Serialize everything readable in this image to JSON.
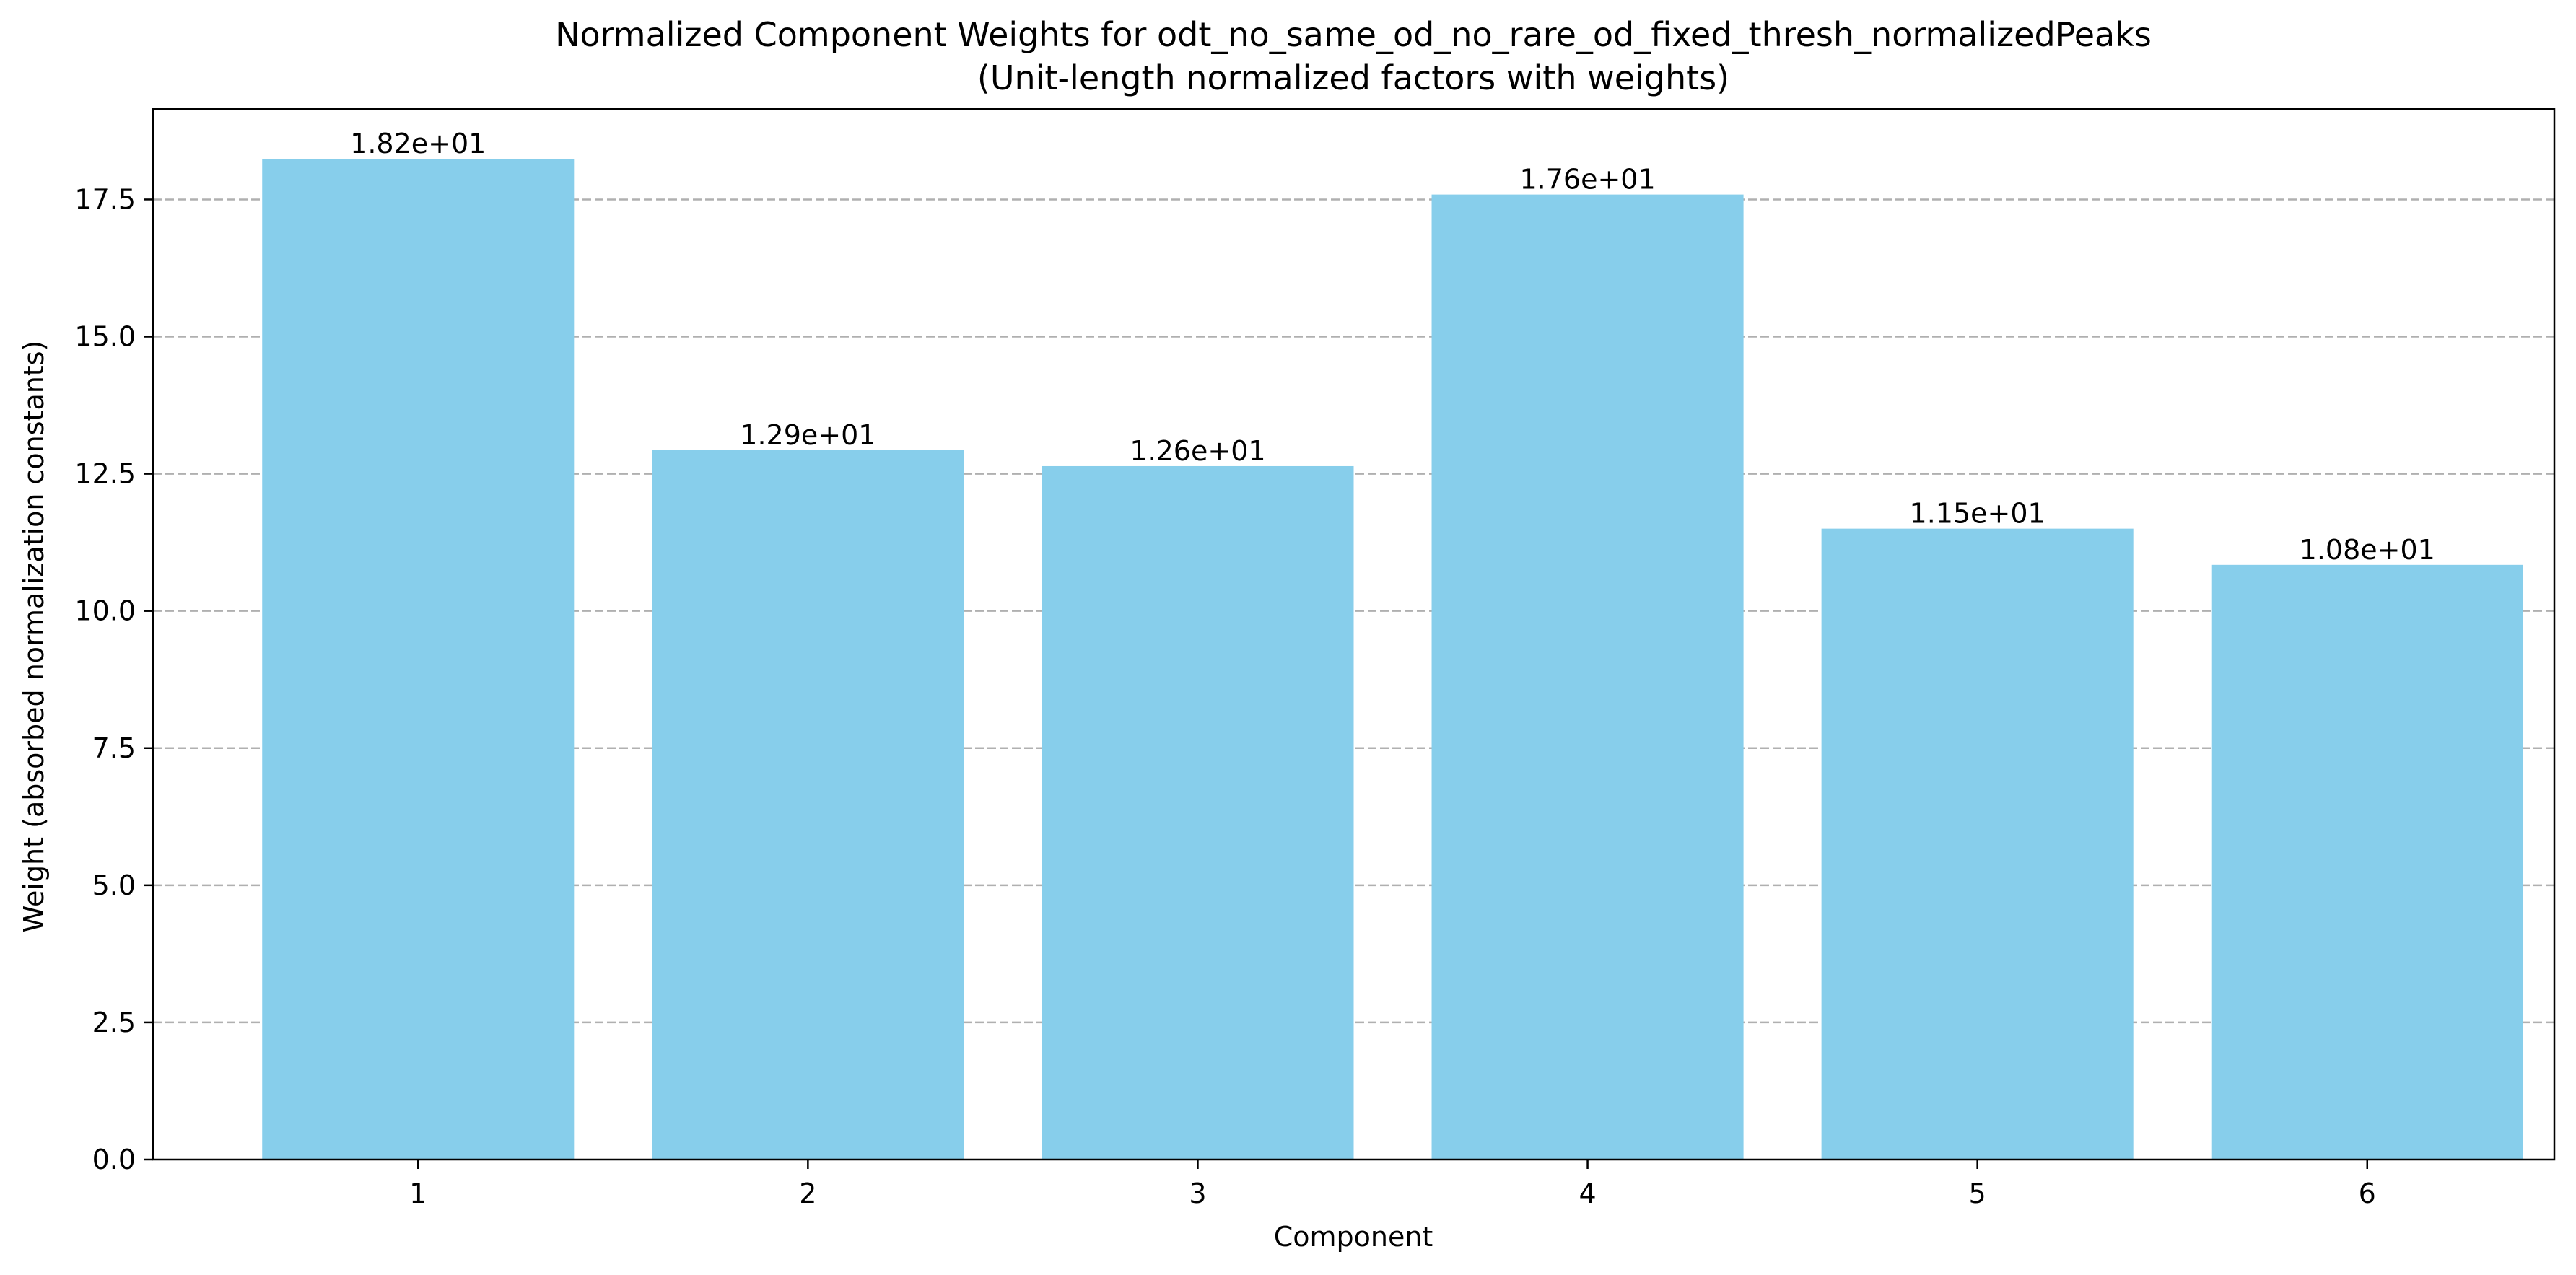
{
  "chart_data": {
    "type": "bar",
    "title": "Normalized Component Weights for odt_no_same_od_no_rare_od_fixed_thresh_normalizedPeaks",
    "subtitle": "(Unit-length normalized factors with weights)",
    "xlabel": "Component",
    "ylabel": "Weight (absorbed normalization constants)",
    "categories": [
      "1",
      "2",
      "3",
      "4",
      "5",
      "6"
    ],
    "values": [
      18.24,
      12.93,
      12.64,
      17.59,
      11.5,
      10.84
    ],
    "value_labels": [
      "1.82e+01",
      "1.29e+01",
      "1.26e+01",
      "1.76e+01",
      "1.15e+01",
      "1.08e+01"
    ],
    "ylim": [
      0,
      19.15
    ],
    "yticks": [
      0.0,
      2.5,
      5.0,
      7.5,
      10.0,
      12.5,
      15.0,
      17.5
    ],
    "ytick_labels": [
      "0.0",
      "2.5",
      "5.0",
      "7.5",
      "10.0",
      "12.5",
      "15.0",
      "17.5"
    ],
    "grid": "y-axis dashed",
    "legend": "none",
    "colors": {
      "bar": "#87CEEB",
      "grid": "#b0b0b0",
      "axis": "#000000",
      "text": "#000000"
    }
  }
}
